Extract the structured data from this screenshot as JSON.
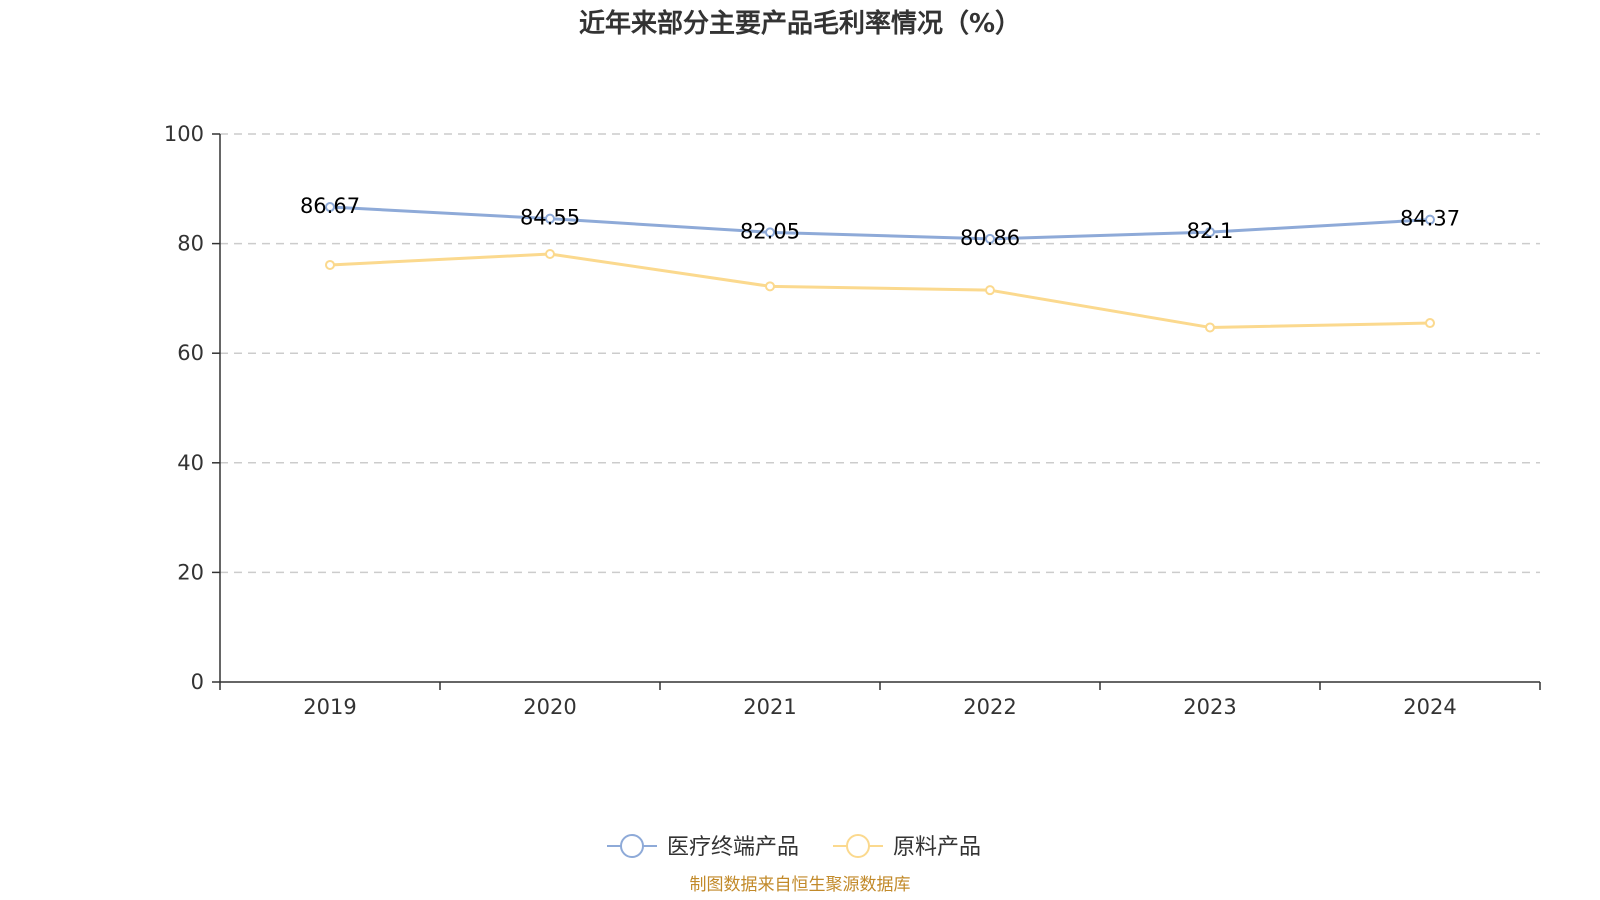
{
  "chart_data": {
    "type": "line",
    "title": "近年来部分主要产品毛利率情况（%）",
    "categories": [
      "2019",
      "2020",
      "2021",
      "2022",
      "2023",
      "2024"
    ],
    "ylim": [
      0,
      100
    ],
    "yticks": [
      0,
      20,
      40,
      60,
      80,
      100
    ],
    "grid": true,
    "legend_position": "bottom-center",
    "series": [
      {
        "name": "医疗终端产品",
        "color": "#8eaad8",
        "show_labels": true,
        "values": [
          86.67,
          84.55,
          82.05,
          80.86,
          82.1,
          84.37
        ]
      },
      {
        "name": "原料产品",
        "color": "#fbd98e",
        "show_labels": false,
        "values": [
          76.1,
          78.1,
          72.2,
          71.5,
          64.7,
          65.5
        ]
      }
    ],
    "source": "制图数据来自恒生聚源数据库"
  }
}
